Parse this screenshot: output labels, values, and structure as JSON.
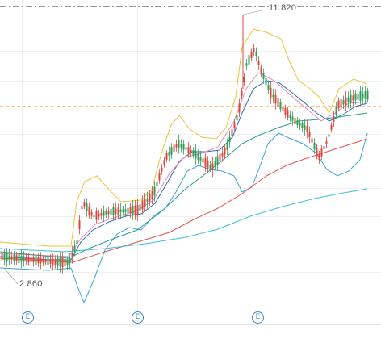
{
  "labels": {
    "high": "11.820",
    "low": "2.860"
  },
  "markers": [
    {
      "symbol": "E"
    },
    {
      "symbol": "E"
    },
    {
      "symbol": "E"
    }
  ],
  "colors": {
    "up": "#e0443a",
    "down": "#2f9e54",
    "bb_upper": "#e8c53a",
    "bb_mid": "#2d6db5",
    "bb_lower": "#3aa3d6",
    "ma_pink": "#e88ab8",
    "ma_teal": "#2f9e8a",
    "ma_red": "#e0554f",
    "ma_cyan": "#36c2d4",
    "ref_line": "#f08a1e",
    "marker": "#3a86c8"
  }
}
